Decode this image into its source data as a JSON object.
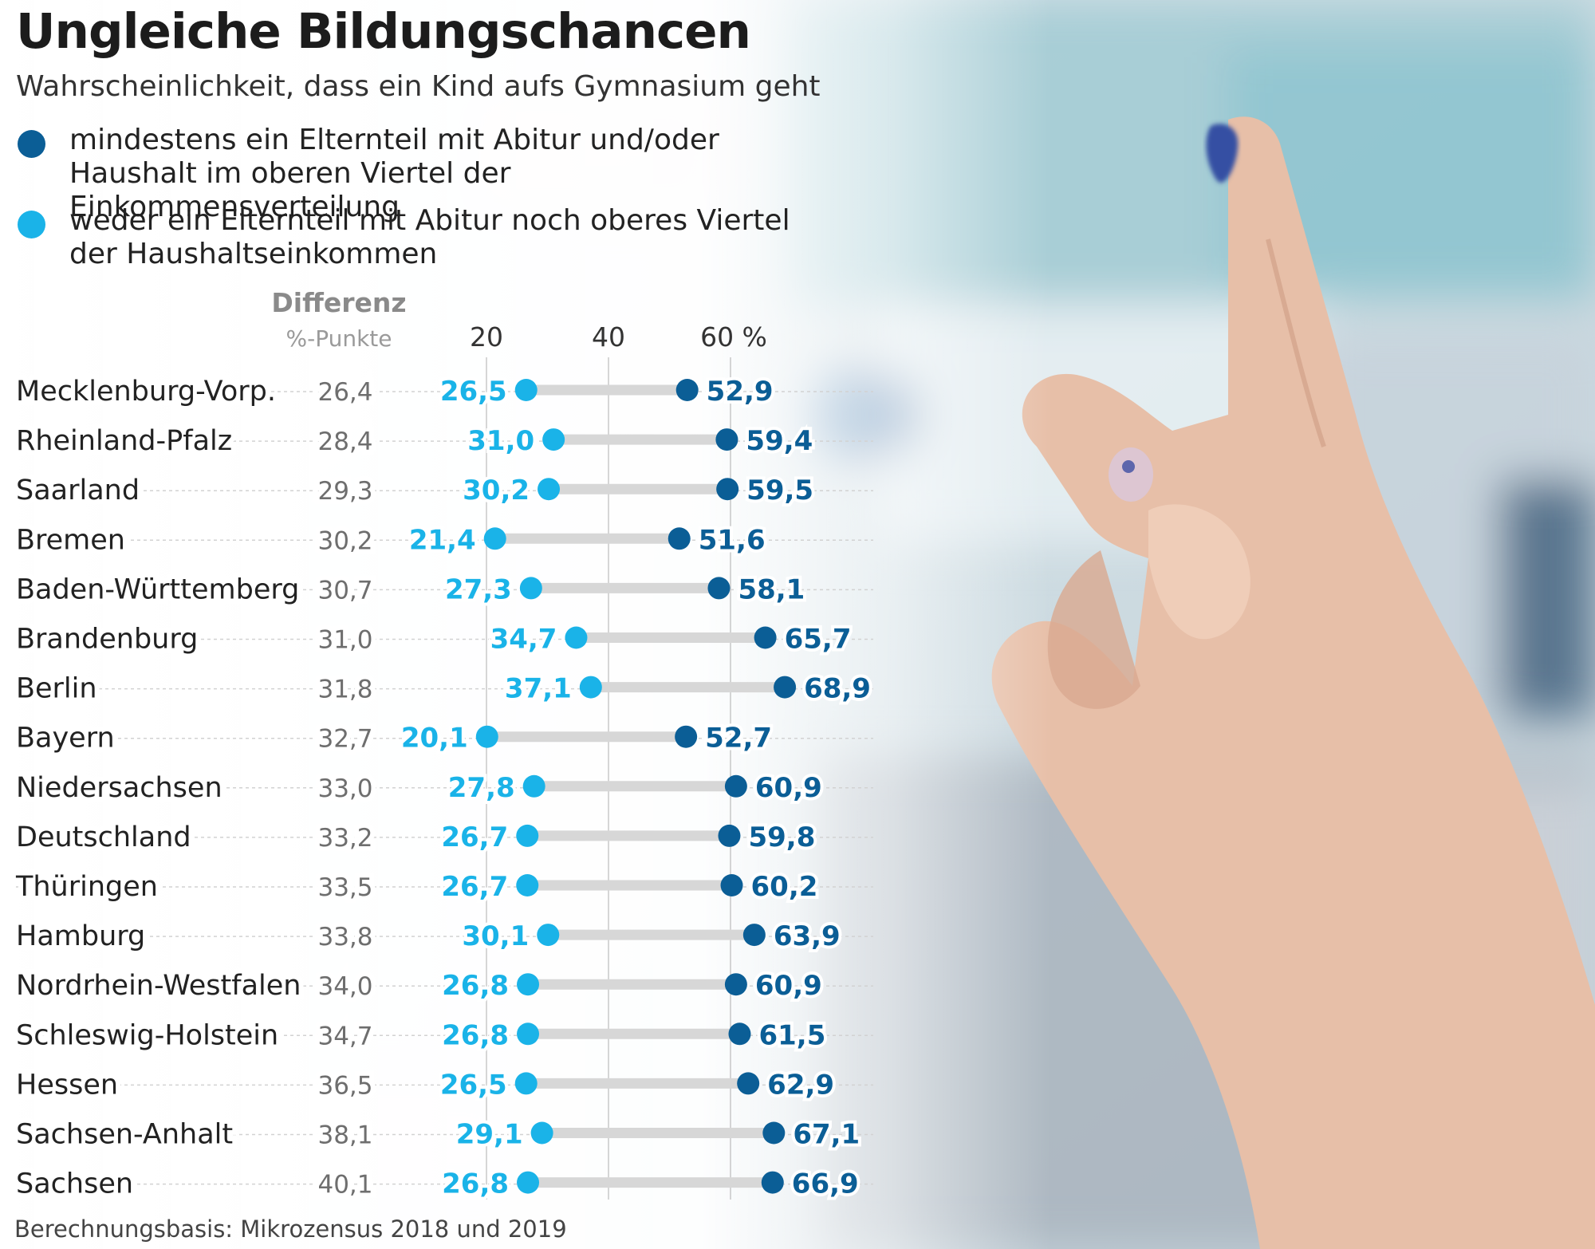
{
  "title": "Ungleiche Bildungschancen",
  "subtitle": "Wahrscheinlichkeit, dass ein Kind aufs Gymnasium geht",
  "legend": {
    "high": "mindestens ein Elternteil mit Abitur und/oder Haushalt im oberen Viertel der Einkommensverteilung",
    "low": "weder ein Elternteil mit Abitur noch oberes Viertel der Haushaltseinkommen"
  },
  "diff_header": "Differenz",
  "diff_subheader": "%-Punkte",
  "source": "Berechnungsbasis: Mikrozensus 2018 und 2019",
  "colors": {
    "high": "#0b5e96",
    "low": "#1ab3e8",
    "connector": "#d7d7d7",
    "gridline": "#c8c8c8"
  },
  "chart_data": {
    "type": "dumbbell",
    "title": "Ungleiche Bildungschancen",
    "xlim": [
      0,
      72
    ],
    "x_ticks": [
      20,
      40,
      60
    ],
    "x_tick_labels": [
      "20",
      "40",
      "60 %"
    ],
    "categories": [
      "Mecklenburg-Vorp.",
      "Rheinland-Pfalz",
      "Saarland",
      "Bremen",
      "Baden-Württemberg",
      "Brandenburg",
      "Berlin",
      "Bayern",
      "Niedersachsen",
      "Deutschland",
      "Thüringen",
      "Hamburg",
      "Nordrhein-Westfalen",
      "Schleswig-Holstein",
      "Hessen",
      "Sachsen-Anhalt",
      "Sachsen"
    ],
    "series": [
      {
        "name": "weder ein Elternteil mit Abitur noch oberes Viertel der Haushaltseinkommen",
        "values": [
          26.5,
          31.0,
          30.2,
          21.4,
          27.3,
          34.7,
          37.1,
          20.1,
          27.8,
          26.7,
          26.7,
          30.1,
          26.8,
          26.8,
          26.5,
          29.1,
          26.8
        ]
      },
      {
        "name": "mindestens ein Elternteil mit Abitur und/oder Haushalt im oberen Viertel der Einkommensverteilung",
        "values": [
          52.9,
          59.4,
          59.5,
          51.6,
          58.1,
          65.7,
          68.9,
          52.7,
          60.9,
          59.8,
          60.2,
          63.9,
          60.9,
          61.5,
          62.9,
          67.1,
          66.9
        ]
      }
    ],
    "difference": [
      26.4,
      28.4,
      29.3,
      30.2,
      30.7,
      31.0,
      31.8,
      32.7,
      33.0,
      33.2,
      33.5,
      33.8,
      34.0,
      34.7,
      36.5,
      38.1,
      40.1
    ],
    "low_labels": [
      "26,5",
      "31,0",
      "30,2",
      "21,4",
      "27,3",
      "34,7",
      "37,1",
      "20,1",
      "27,8",
      "26,7",
      "26,7",
      "30,1",
      "26,8",
      "26,8",
      "26,5",
      "29,1",
      "26,8"
    ],
    "high_labels": [
      "52,9",
      "59,4",
      "59,5",
      "51,6",
      "58,1",
      "65,7",
      "68,9",
      "52,7",
      "60,9",
      "59,8",
      "60,2",
      "63,9",
      "60,9",
      "61,5",
      "62,9",
      "67,1",
      "66,9"
    ],
    "difference_labels": [
      "26,4",
      "28,4",
      "29,3",
      "30,2",
      "30,7",
      "31,0",
      "31,8",
      "32,7",
      "33,0",
      "33,2",
      "33,5",
      "33,8",
      "34,0",
      "34,7",
      "36,5",
      "38,1",
      "40,1"
    ]
  }
}
